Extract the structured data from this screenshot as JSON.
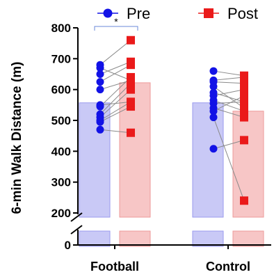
{
  "chart_data": {
    "type": "bar",
    "categories": [
      "Football",
      "Control"
    ],
    "ylabel": "6-min Walk Distance (m)",
    "y_ticks": [
      0,
      200,
      300,
      400,
      500,
      600,
      700,
      800
    ],
    "ylim": [
      0,
      800
    ],
    "axis_break": [
      0,
      200
    ],
    "series": [
      {
        "name": "Pre",
        "color": "#1212e6",
        "bar_fill": "#c9c9f6",
        "bar_edge": "#9a9aee",
        "marker": "circle",
        "means": [
          557,
          557
        ]
      },
      {
        "name": "Post",
        "color": "#ea1a1a",
        "bar_fill": "#f7c6c6",
        "bar_edge": "#ee9a9a",
        "marker": "square",
        "means": [
          622,
          530
        ]
      }
    ],
    "individual_pairs": {
      "Football": [
        [
          470,
          460
        ],
        [
          495,
          545
        ],
        [
          500,
          560
        ],
        [
          510,
          600
        ],
        [
          520,
          620
        ],
        [
          545,
          640
        ],
        [
          550,
          560
        ],
        [
          600,
          630
        ],
        [
          625,
          680
        ],
        [
          650,
          690
        ],
        [
          670,
          630
        ],
        [
          680,
          760
        ]
      ],
      "Control": [
        [
          408,
          436
        ],
        [
          510,
          240
        ],
        [
          530,
          580
        ],
        [
          540,
          510
        ],
        [
          555,
          560
        ],
        [
          565,
          530
        ],
        [
          580,
          600
        ],
        [
          590,
          560
        ],
        [
          610,
          540
        ],
        [
          625,
          620
        ],
        [
          630,
          640
        ],
        [
          660,
          645
        ]
      ]
    },
    "significance": {
      "label": "*",
      "group": "Football"
    },
    "legend_position": "top"
  }
}
